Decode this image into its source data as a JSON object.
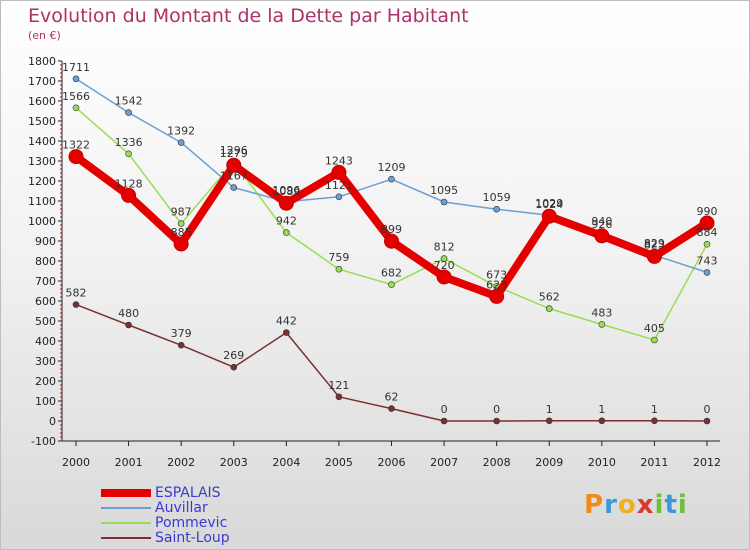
{
  "chart_data": {
    "type": "line",
    "title": "Evolution du Montant de la Dette par Habitant",
    "subtitle": "(en €)",
    "xlabel": "",
    "ylabel": "",
    "x": [
      "2000",
      "2001",
      "2002",
      "2003",
      "2004",
      "2005",
      "2006",
      "2007",
      "2008",
      "2009",
      "2010",
      "2011",
      "2012"
    ],
    "ylim": [
      -100,
      1800
    ],
    "yticks": [
      -100,
      0,
      100,
      200,
      300,
      400,
      500,
      600,
      700,
      800,
      900,
      1000,
      1100,
      1200,
      1300,
      1400,
      1500,
      1600,
      1700,
      1800
    ],
    "grid": false,
    "legend_position": "bottom-left",
    "series": [
      {
        "name": "ESPALAIS",
        "color": "#e50000",
        "width": 8,
        "values": [
          1322,
          1128,
          885,
          1279,
          1089,
          1243,
          899,
          720,
          623,
          1024,
          926,
          823,
          990
        ],
        "labels": [
          "1322",
          "1128",
          "885",
          "1279",
          "1089",
          "1243",
          "899",
          "720",
          "623",
          "1024",
          "926",
          "823",
          "990"
        ]
      },
      {
        "name": "Auvillar",
        "color": "#6a9fd4",
        "width": 1.5,
        "values": [
          1711,
          1542,
          1392,
          1167,
          1096,
          1121,
          1209,
          1095,
          1059,
          1029,
          940,
          829,
          743
        ],
        "labels": [
          "1711",
          "1542",
          "1392",
          "1167",
          "1096",
          "1121",
          "1209",
          "1095",
          "1059",
          "1029",
          "940",
          "829",
          "743"
        ]
      },
      {
        "name": "Pommevic",
        "color": "#99dd55",
        "width": 1.5,
        "values": [
          1566,
          1336,
          987,
          1296,
          942,
          759,
          682,
          812,
          673,
          562,
          483,
          405,
          884
        ],
        "labels": [
          "1566",
          "1336",
          "987",
          "1296",
          "942",
          "759",
          "682",
          "812",
          "673",
          "562",
          "483",
          "405",
          "884"
        ]
      },
      {
        "name": "Saint-Loup",
        "color": "#7a3030",
        "width": 1.5,
        "values": [
          582,
          480,
          379,
          269,
          442,
          121,
          62,
          0,
          0,
          1,
          1,
          1,
          0
        ],
        "labels": [
          "582",
          "480",
          "379",
          "269",
          "442",
          "121",
          "62",
          "0",
          "0",
          "1",
          "1",
          "1",
          "0"
        ]
      }
    ]
  },
  "logo": {
    "letters": [
      {
        "char": "P",
        "color": "#f08a1c"
      },
      {
        "char": "r",
        "color": "#3a9ad9"
      },
      {
        "char": "o",
        "color": "#f2b01e"
      },
      {
        "char": "x",
        "color": "#d93a2a"
      },
      {
        "char": "i",
        "color": "#6cbf3a"
      },
      {
        "char": "t",
        "color": "#3a9ad9"
      },
      {
        "char": "i",
        "color": "#6cbf3a"
      }
    ]
  }
}
